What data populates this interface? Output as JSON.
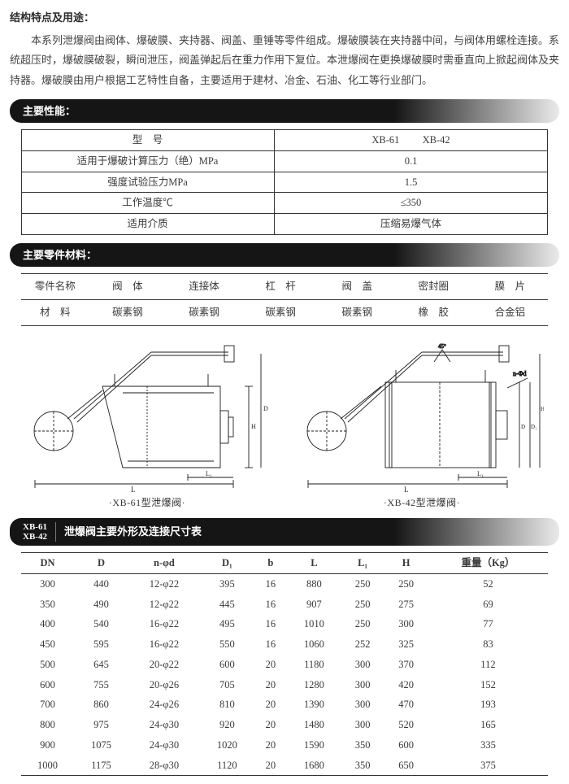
{
  "sections": {
    "structure": {
      "title": "结构特点及用途：",
      "paragraph": "本系列泄爆阀由阀体、爆破膜、夹持器、阀盖、重锤等零件组成。爆破膜装在夹持器中间，与阀体用螺栓连接。系统超压时，爆破膜破裂，瞬间泄压，阀盖弹起后在重力作用下复位。本泄爆阀在更换爆破膜时需垂直向上掀起阀体及夹持器。爆破膜由用户根据工艺特性自备，主要适用于建材、冶金、石油、化工等行业部门。"
    },
    "performance": {
      "banner": "主要性能：",
      "header_model": "型　号",
      "models": [
        "XB-61",
        "XB-42"
      ],
      "rows": [
        {
          "label": "适用于爆破计算压力（绝）MPa",
          "value": "0.1"
        },
        {
          "label": "强度试验压力MPa",
          "value": "1.5"
        },
        {
          "label": "工作温度℃",
          "value": "≤350"
        },
        {
          "label": "适用介质",
          "value": "压缩易爆气体"
        }
      ]
    },
    "parts": {
      "banner": "主要零件材料：",
      "row1_label": "零件名称",
      "row1": [
        "阀　体",
        "连接体",
        "杠　杆",
        "阀　盖",
        "密封圈",
        "膜　片"
      ],
      "row2_label": "材　料",
      "row2": [
        "碳素钢",
        "碳素钢",
        "碳素钢",
        "碳素钢",
        "橡　胶",
        "合金铝"
      ]
    },
    "diagram": {
      "cap1": "·XB-61型泄爆阀·",
      "cap2": "·XB-42型泄爆阀·",
      "stroke": "#1c1c1c",
      "stroke_width": 0.8
    },
    "dims": {
      "banner_prefix1": "XB-61",
      "banner_prefix2": "XB-42",
      "banner_text": "泄爆阀主要外形及连接尺寸表",
      "headers": [
        "DN",
        "D",
        "n-φd",
        "D₁",
        "b",
        "L",
        "L₁",
        "H",
        "重量（Kg）"
      ],
      "rows": [
        [
          "300",
          "440",
          "12-φ22",
          "395",
          "16",
          "880",
          "250",
          "250",
          "52"
        ],
        [
          "350",
          "490",
          "12-φ22",
          "445",
          "16",
          "907",
          "250",
          "275",
          "69"
        ],
        [
          "400",
          "540",
          "16-φ22",
          "495",
          "16",
          "1010",
          "250",
          "300",
          "77"
        ],
        [
          "450",
          "595",
          "16-φ22",
          "550",
          "16",
          "1060",
          "252",
          "325",
          "83"
        ],
        [
          "500",
          "645",
          "20-φ22",
          "600",
          "20",
          "1180",
          "300",
          "370",
          "112"
        ],
        [
          "600",
          "755",
          "20-φ26",
          "705",
          "20",
          "1280",
          "300",
          "420",
          "152"
        ],
        [
          "700",
          "860",
          "24-φ26",
          "810",
          "20",
          "1390",
          "300",
          "470",
          "193"
        ],
        [
          "800",
          "975",
          "24-φ30",
          "920",
          "20",
          "1480",
          "300",
          "520",
          "165"
        ],
        [
          "900",
          "1075",
          "24-φ30",
          "1020",
          "20",
          "1590",
          "350",
          "600",
          "335"
        ],
        [
          "1000",
          "1175",
          "28-φ30",
          "1120",
          "20",
          "1680",
          "350",
          "650",
          "375"
        ]
      ]
    }
  },
  "colors": {
    "text": "#3a3a3a",
    "banner_bg": "#151515",
    "border": "#333333"
  }
}
